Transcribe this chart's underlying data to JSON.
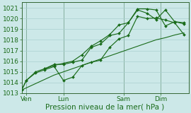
{
  "bg_color": "#cce8e8",
  "grid_color": "#aad0d0",
  "line_color": "#1a6b1a",
  "vline_color": "#336633",
  "spine_color": "#336633",
  "ylim": [
    1013.0,
    1021.5
  ],
  "yticks": [
    1013,
    1014,
    1015,
    1016,
    1017,
    1018,
    1019,
    1020,
    1021
  ],
  "xlabel": "Pression niveau de la mer( hPa )",
  "xlabel_fontsize": 7.5,
  "tick_fontsize": 6.5,
  "xlim": [
    0,
    18
  ],
  "day_labels": [
    "Ven",
    "Lun",
    "Sam",
    "Dim"
  ],
  "day_positions": [
    0.5,
    4.5,
    11.0,
    15.0
  ],
  "vline_positions": [
    0.5,
    4.5,
    11.0,
    15.0
  ],
  "series1_x": [
    0.0,
    0.5,
    1.5,
    2.5,
    3.5,
    4.5,
    5.5,
    6.5,
    7.5,
    8.5,
    9.5,
    10.5,
    11.5,
    12.5,
    13.5,
    14.5,
    15.5,
    16.5,
    17.5
  ],
  "series1_y": [
    1013.3,
    1013.5,
    1013.9,
    1014.3,
    1014.7,
    1015.0,
    1015.3,
    1015.6,
    1015.9,
    1016.2,
    1016.5,
    1016.8,
    1017.1,
    1017.4,
    1017.7,
    1018.0,
    1018.2,
    1018.45,
    1018.65
  ],
  "series2_x": [
    0.0,
    0.5,
    1.5,
    2.5,
    3.5,
    4.5,
    5.5,
    6.5,
    7.5,
    8.5,
    9.5,
    10.5,
    11.5,
    12.5,
    13.5,
    14.5,
    15.5,
    16.5,
    17.5
  ],
  "series2_y": [
    1013.3,
    1014.2,
    1014.9,
    1015.2,
    1015.5,
    1014.2,
    1014.5,
    1015.6,
    1015.9,
    1016.1,
    1017.3,
    1018.1,
    1018.4,
    1020.2,
    1020.0,
    1020.05,
    1019.85,
    1019.6,
    1018.5
  ],
  "series3_x": [
    0.0,
    0.5,
    1.5,
    2.5,
    3.5,
    4.5,
    5.5,
    6.5,
    7.5,
    8.5,
    9.5,
    10.5,
    11.5,
    12.5,
    13.5,
    14.5,
    15.5,
    16.5,
    17.5
  ],
  "series3_y": [
    1013.3,
    1014.2,
    1015.0,
    1015.3,
    1015.7,
    1015.7,
    1015.9,
    1016.1,
    1017.3,
    1017.6,
    1018.4,
    1018.6,
    1019.6,
    1020.8,
    1020.5,
    1019.9,
    1020.8,
    1019.7,
    1019.6
  ],
  "series4_x": [
    2.5,
    3.5,
    4.5,
    5.5,
    6.5,
    7.5,
    8.5,
    9.5,
    10.5,
    11.5,
    12.5,
    13.5,
    14.5,
    15.5,
    16.5,
    17.5
  ],
  "series4_y": [
    1015.3,
    1015.6,
    1015.8,
    1016.0,
    1016.6,
    1017.4,
    1017.9,
    1018.5,
    1019.4,
    1019.6,
    1020.9,
    1020.9,
    1020.8,
    1019.3,
    1019.7,
    1019.5
  ]
}
